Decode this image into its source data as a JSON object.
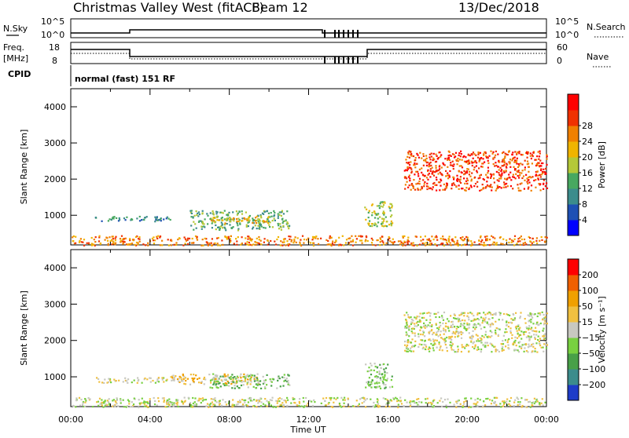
{
  "header": {
    "station": "Christmas Valley West (fitACF)",
    "beam": "Beam 12",
    "date": "13/Dec/2018"
  },
  "panels": {
    "nsky": {
      "label": "N.Sky",
      "ticks": [
        "10^5",
        "10^0"
      ]
    },
    "nsearch": {
      "label": "N.Search",
      "ticks": [
        "10^5",
        "10^0"
      ]
    },
    "freq": {
      "label_top": "Freq.",
      "label_unit": "[MHz]",
      "ticks": [
        "18",
        "8"
      ]
    },
    "nave": {
      "label": "Nave",
      "ticks": [
        "60",
        "0"
      ]
    },
    "cpid": {
      "label": "CPID",
      "value": "normal (fast) 151 RF"
    }
  },
  "chart_data": [
    {
      "type": "heatmap",
      "name": "power",
      "ylabel": "Slant Range [km]",
      "xlabel": "Time UT",
      "xlim": [
        0,
        24
      ],
      "ylim": [
        180,
        4500
      ],
      "yticks": [
        "1000",
        "2000",
        "3000",
        "4000"
      ],
      "xticks": [
        "00:00",
        "04:00",
        "08:00",
        "12:00",
        "16:00",
        "20:00",
        "00:00"
      ],
      "colorbar": {
        "label": "Power [dB]",
        "ticks": [
          "4",
          "8",
          "12",
          "16",
          "20",
          "24",
          "28"
        ],
        "colors": [
          "#0000ff",
          "#1e50b4",
          "#3c8c8c",
          "#48a860",
          "#b4c838",
          "#f0b400",
          "#f08000",
          "#f03200",
          "#ff0000"
        ]
      },
      "regions": [
        {
          "t0": 1.2,
          "t1": 5.0,
          "r0": 850,
          "r1": 1000,
          "level": 2
        },
        {
          "t0": 6.0,
          "t1": 11.0,
          "r0": 600,
          "r1": 1150,
          "level": 3
        },
        {
          "t0": 7.0,
          "t1": 10.0,
          "r0": 800,
          "r1": 1000,
          "level": 5
        },
        {
          "t0": 0.0,
          "t1": 24.0,
          "r0": 180,
          "r1": 450,
          "level": 6
        },
        {
          "t0": 14.8,
          "t1": 16.2,
          "r0": 700,
          "r1": 1400,
          "level": 4
        },
        {
          "t0": 16.8,
          "t1": 24.0,
          "r0": 1700,
          "r1": 2800,
          "level": 7
        }
      ]
    },
    {
      "type": "heatmap",
      "name": "velocity",
      "ylabel": "Slant Range [km]",
      "xlabel": "Time UT",
      "xlim": [
        0,
        24
      ],
      "ylim": [
        180,
        4500
      ],
      "yticks": [
        "1000",
        "2000",
        "3000",
        "4000"
      ],
      "xticks": [
        "00:00",
        "04:00",
        "08:00",
        "12:00",
        "16:00",
        "20:00",
        "00:00"
      ],
      "colorbar": {
        "label": "Velocity [m s⁻¹]",
        "ticks": [
          "200",
          "100",
          "50",
          "15",
          "−15",
          "−50",
          "−100",
          "−200"
        ],
        "colors": [
          "#1e3cc8",
          "#3c8c8c",
          "#48a048",
          "#78d040",
          "#c8c8c0",
          "#f0c040",
          "#f0a000",
          "#f06000",
          "#ff0000"
        ]
      },
      "regions": [
        {
          "t0": 1.2,
          "t1": 5.0,
          "r0": 850,
          "r1": 1000,
          "level": 4
        },
        {
          "t0": 5.0,
          "t1": 9.5,
          "r0": 800,
          "r1": 1100,
          "level": 5
        },
        {
          "t0": 7.0,
          "t1": 11.0,
          "r0": 700,
          "r1": 1100,
          "level": 3
        },
        {
          "t0": 0.0,
          "t1": 24.0,
          "r0": 180,
          "r1": 450,
          "level": 4
        },
        {
          "t0": 14.8,
          "t1": 16.2,
          "r0": 700,
          "r1": 1400,
          "level": 3
        },
        {
          "t0": 16.8,
          "t1": 24.0,
          "r0": 1700,
          "r1": 2800,
          "level": 4
        }
      ]
    }
  ]
}
